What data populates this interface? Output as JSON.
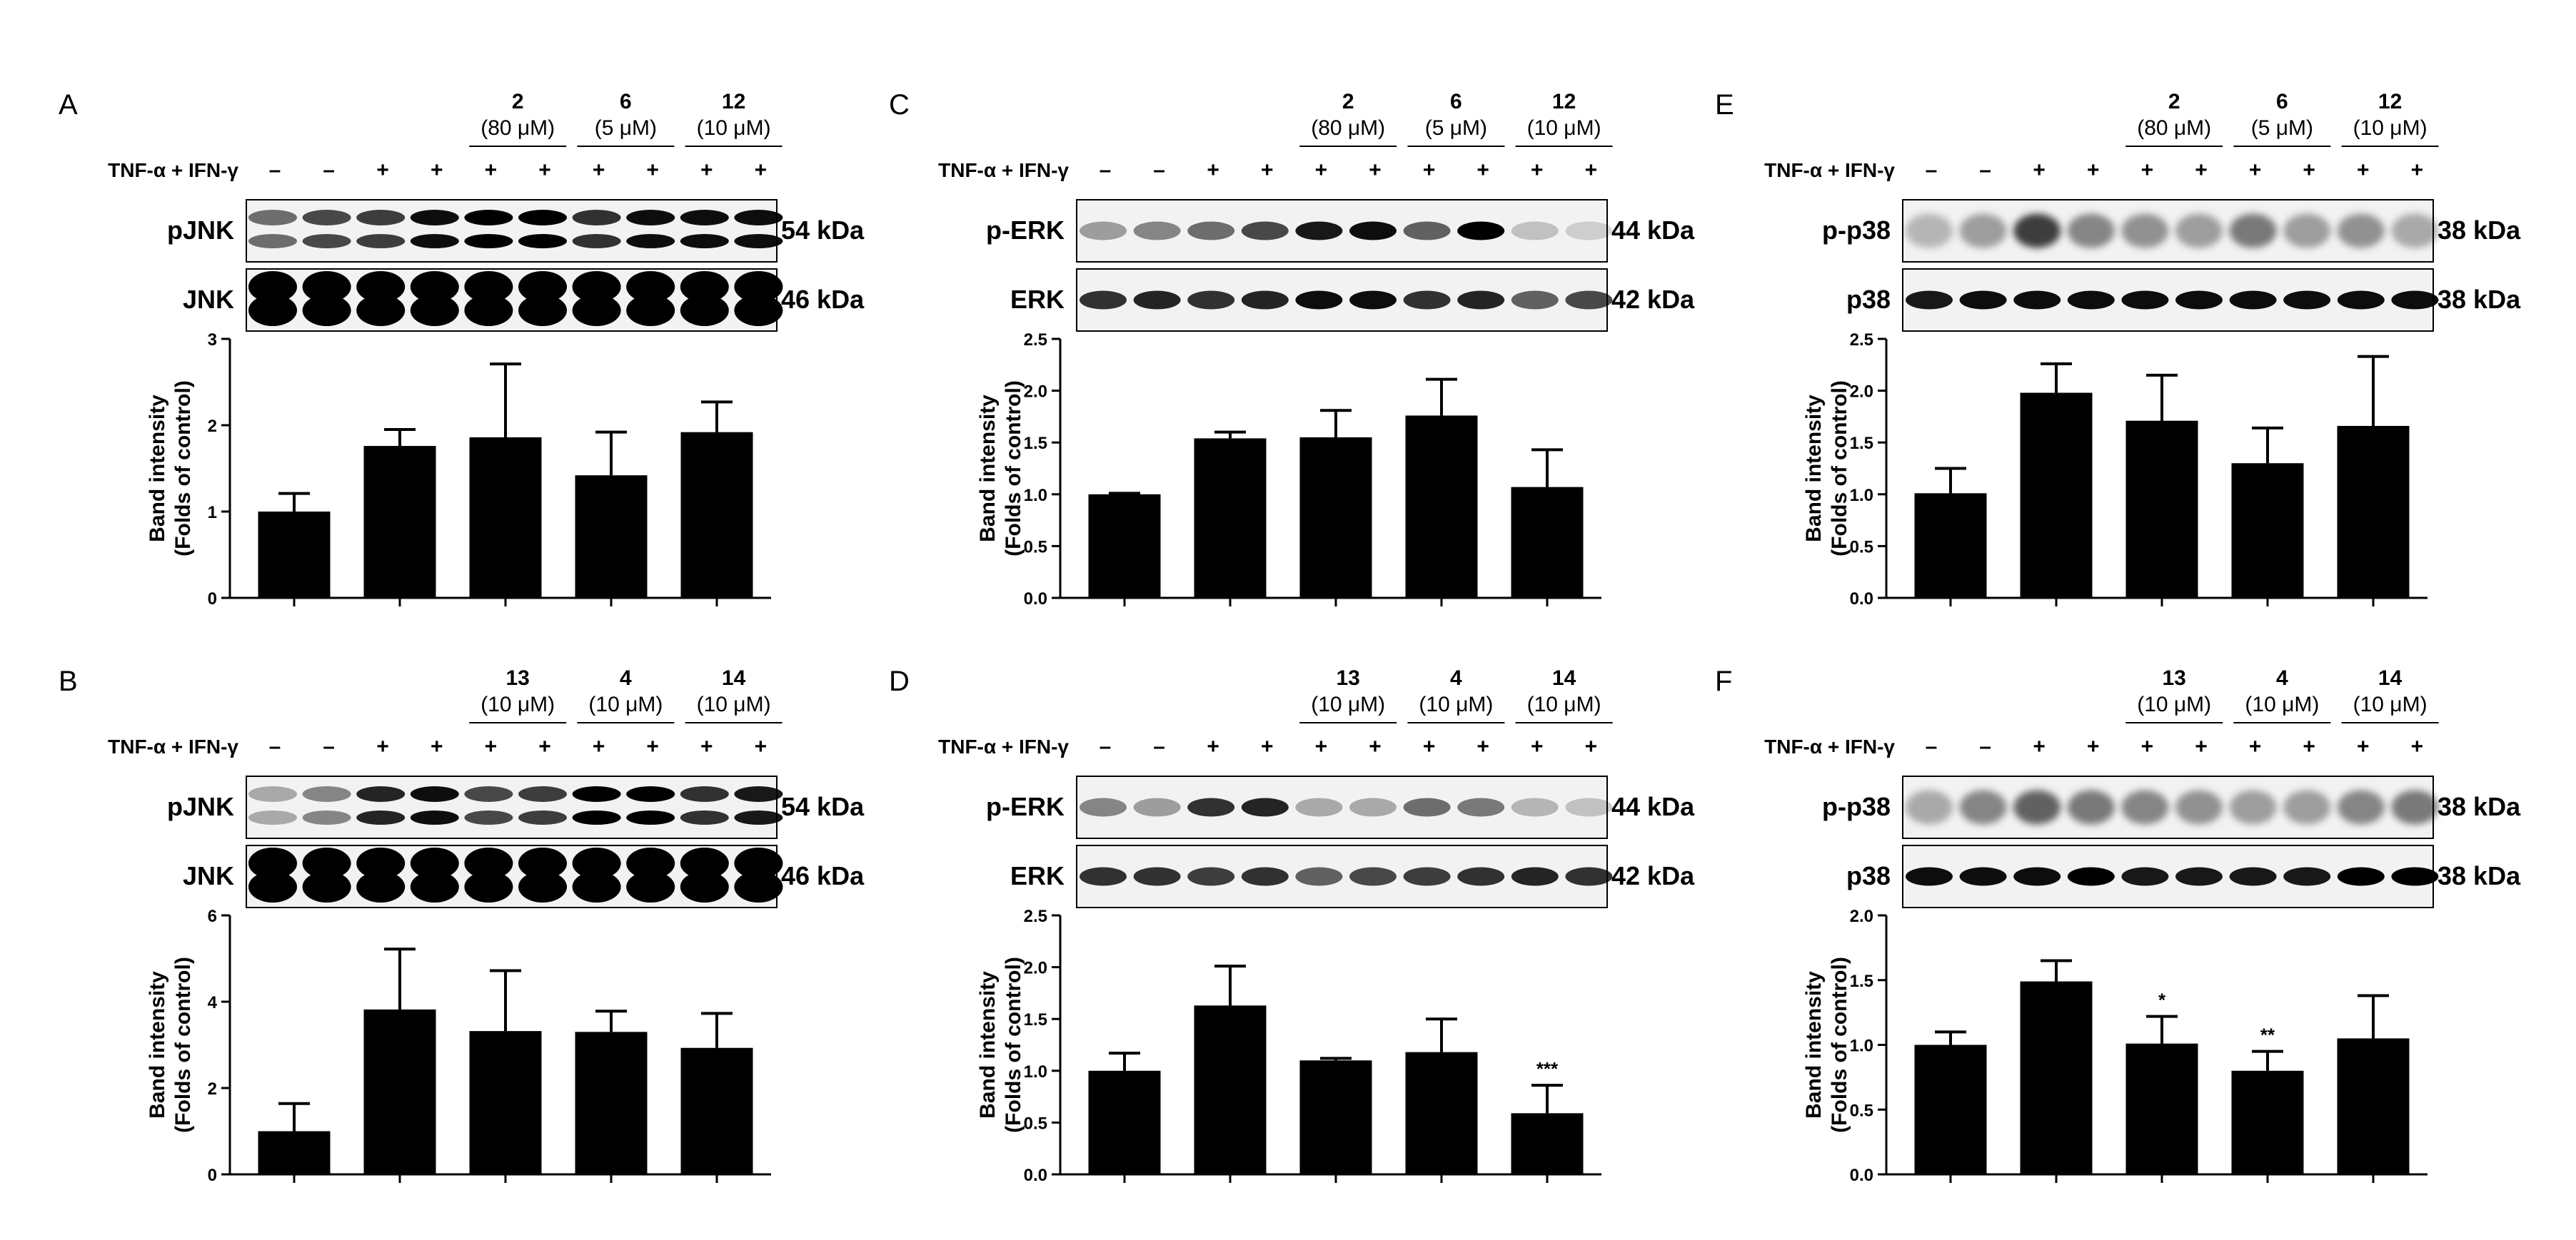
{
  "figure": {
    "treatment_label": "TNF-α + IFN-γ",
    "treatment_signs": [
      "–",
      "–",
      "+",
      "+",
      "+",
      "+",
      "+",
      "+",
      "+",
      "+"
    ],
    "y_label_line1": "Band intensity",
    "y_label_line2": "(Folds of control)",
    "colors": {
      "bar": "#000000",
      "background": "#ffffff",
      "blot_bg": "#f2f2f2",
      "band": "#000000"
    }
  },
  "panels": [
    {
      "letter": "A",
      "compounds": [
        {
          "name": "2",
          "conc": "(80 μM)"
        },
        {
          "name": "6",
          "conc": "(5 μM)"
        },
        {
          "name": "12",
          "conc": "(10 μM)"
        }
      ],
      "blots": [
        {
          "protein": "pJNK",
          "size": "54 kDa"
        },
        {
          "protein": "JNK",
          "size": "46 kDa"
        }
      ]
    },
    {
      "letter": "C",
      "compounds": [
        {
          "name": "2",
          "conc": "(80 μM)"
        },
        {
          "name": "6",
          "conc": "(5 μM)"
        },
        {
          "name": "12",
          "conc": "(10 μM)"
        }
      ],
      "blots": [
        {
          "protein": "p-ERK",
          "size": "44 kDa"
        },
        {
          "protein": "ERK",
          "size": "42 kDa"
        }
      ]
    },
    {
      "letter": "E",
      "compounds": [
        {
          "name": "2",
          "conc": "(80 μM)"
        },
        {
          "name": "6",
          "conc": "(5 μM)"
        },
        {
          "name": "12",
          "conc": "(10 μM)"
        }
      ],
      "blots": [
        {
          "protein": "p-p38",
          "size": "38 kDa"
        },
        {
          "protein": "p38",
          "size": "38 kDa"
        }
      ]
    },
    {
      "letter": "B",
      "compounds": [
        {
          "name": "13",
          "conc": "(10 μM)"
        },
        {
          "name": "4",
          "conc": "(10 μM)"
        },
        {
          "name": "14",
          "conc": "(10 μM)"
        }
      ],
      "blots": [
        {
          "protein": "pJNK",
          "size": "54 kDa"
        },
        {
          "protein": "JNK",
          "size": "46 kDa"
        }
      ]
    },
    {
      "letter": "D",
      "compounds": [
        {
          "name": "13",
          "conc": "(10 μM)"
        },
        {
          "name": "4",
          "conc": "(10 μM)"
        },
        {
          "name": "14",
          "conc": "(10 μM)"
        }
      ],
      "blots": [
        {
          "protein": "p-ERK",
          "size": "44 kDa"
        },
        {
          "protein": "ERK",
          "size": "42 kDa"
        }
      ]
    },
    {
      "letter": "F",
      "compounds": [
        {
          "name": "13",
          "conc": "(10 μM)"
        },
        {
          "name": "4",
          "conc": "(10 μM)"
        },
        {
          "name": "14",
          "conc": "(10 μM)"
        }
      ],
      "blots": [
        {
          "protein": "p-p38",
          "size": "38 kDa"
        },
        {
          "protein": "p38",
          "size": "38 kDa"
        }
      ]
    }
  ],
  "chart_data": [
    {
      "panel": "A",
      "type": "bar",
      "ylim": [
        0,
        3
      ],
      "yticks": [
        "0",
        "1",
        "2",
        "3"
      ],
      "values": [
        1.0,
        1.76,
        1.86,
        1.42,
        1.92
      ],
      "errors": [
        0.21,
        0.19,
        0.85,
        0.5,
        0.35
      ],
      "annotations": [
        "",
        "",
        "",
        "",
        ""
      ]
    },
    {
      "panel": "C",
      "type": "bar",
      "ylim": [
        0,
        2.5
      ],
      "yticks": [
        "0.0",
        "0.5",
        "1.0",
        "1.5",
        "2.0",
        "2.5"
      ],
      "values": [
        1.0,
        1.54,
        1.55,
        1.76,
        1.07
      ],
      "errors": [
        0.01,
        0.06,
        0.26,
        0.35,
        0.36
      ],
      "annotations": [
        "",
        "",
        "",
        "",
        ""
      ]
    },
    {
      "panel": "E",
      "type": "bar",
      "ylim": [
        0,
        2.5
      ],
      "yticks": [
        "0.0",
        "0.5",
        "1.0",
        "1.5",
        "2.0",
        "2.5"
      ],
      "values": [
        1.01,
        1.98,
        1.71,
        1.3,
        1.66
      ],
      "errors": [
        0.24,
        0.28,
        0.44,
        0.34,
        0.67
      ],
      "annotations": [
        "",
        "",
        "",
        "",
        ""
      ]
    },
    {
      "panel": "B",
      "type": "bar",
      "ylim": [
        0,
        6
      ],
      "yticks": [
        "0",
        "2",
        "4",
        "6"
      ],
      "values": [
        1.0,
        3.82,
        3.32,
        3.3,
        2.93
      ],
      "errors": [
        0.64,
        1.4,
        1.4,
        0.48,
        0.8
      ],
      "annotations": [
        "",
        "",
        "",
        "",
        ""
      ]
    },
    {
      "panel": "D",
      "type": "bar",
      "ylim": [
        0,
        2.5
      ],
      "yticks": [
        "0.0",
        "0.5",
        "1.0",
        "1.5",
        "2.0",
        "2.5"
      ],
      "values": [
        1.0,
        1.63,
        1.1,
        1.18,
        0.59
      ],
      "errors": [
        0.17,
        0.38,
        0.02,
        0.32,
        0.27
      ],
      "annotations": [
        "",
        "",
        "",
        "",
        "***"
      ]
    },
    {
      "panel": "F",
      "type": "bar",
      "ylim": [
        0,
        2.0
      ],
      "yticks": [
        "0.0",
        "0.5",
        "1.0",
        "1.5",
        "2.0"
      ],
      "values": [
        1.0,
        1.49,
        1.01,
        0.8,
        1.05
      ],
      "errors": [
        0.1,
        0.16,
        0.21,
        0.15,
        0.33
      ],
      "annotations": [
        "",
        "",
        "*",
        "**",
        ""
      ]
    }
  ]
}
